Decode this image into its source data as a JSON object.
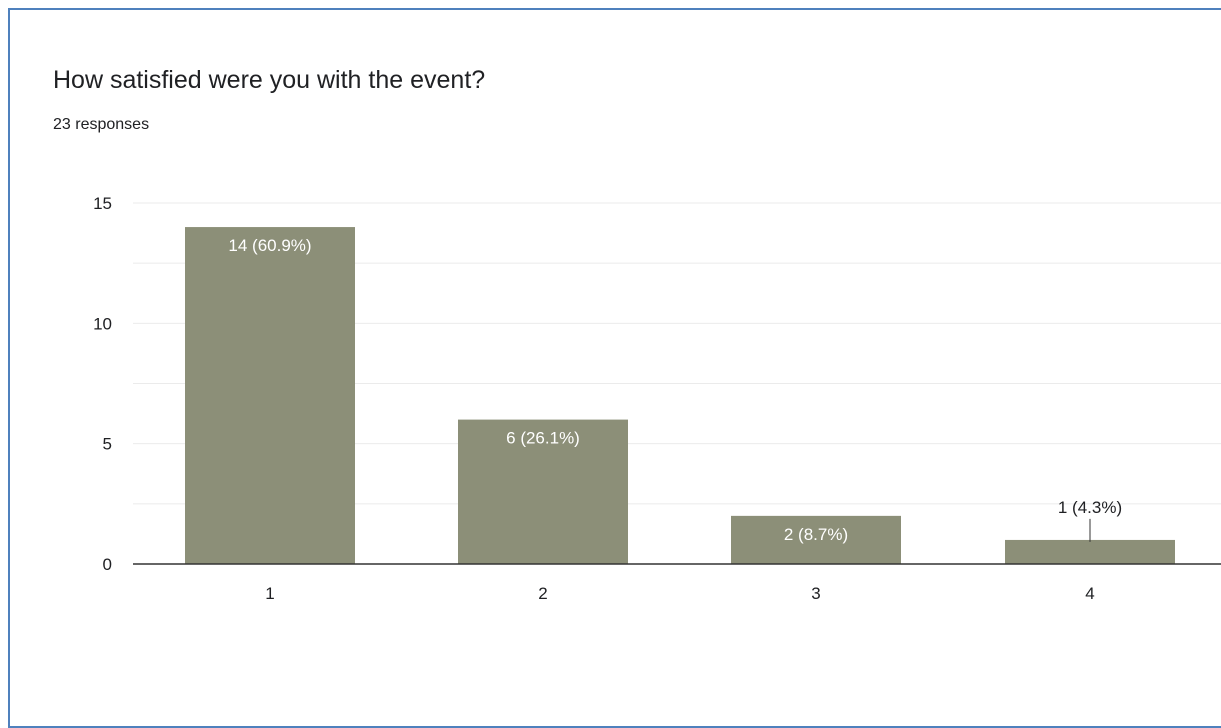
{
  "header": {
    "title": "How satisfied were you with the event?",
    "responses": "23 responses"
  },
  "colors": {
    "bar": "#8c8f78",
    "grid": "#ebebeb",
    "axis": "#333333",
    "text": "#202124",
    "frame": "#4f81bd"
  },
  "chart_data": {
    "type": "bar",
    "title": "How satisfied were you with the event?",
    "subtitle": "23 responses",
    "categories": [
      "1",
      "2",
      "3",
      "4"
    ],
    "values": [
      14,
      6,
      2,
      1
    ],
    "labels": [
      "14 (60.9%)",
      "6 (26.1%)",
      "2 (8.7%)",
      "1 (4.3%)"
    ],
    "ylim": [
      0,
      15
    ],
    "yticks": [
      0,
      5,
      10,
      15
    ],
    "grid": true,
    "legend": "none"
  }
}
